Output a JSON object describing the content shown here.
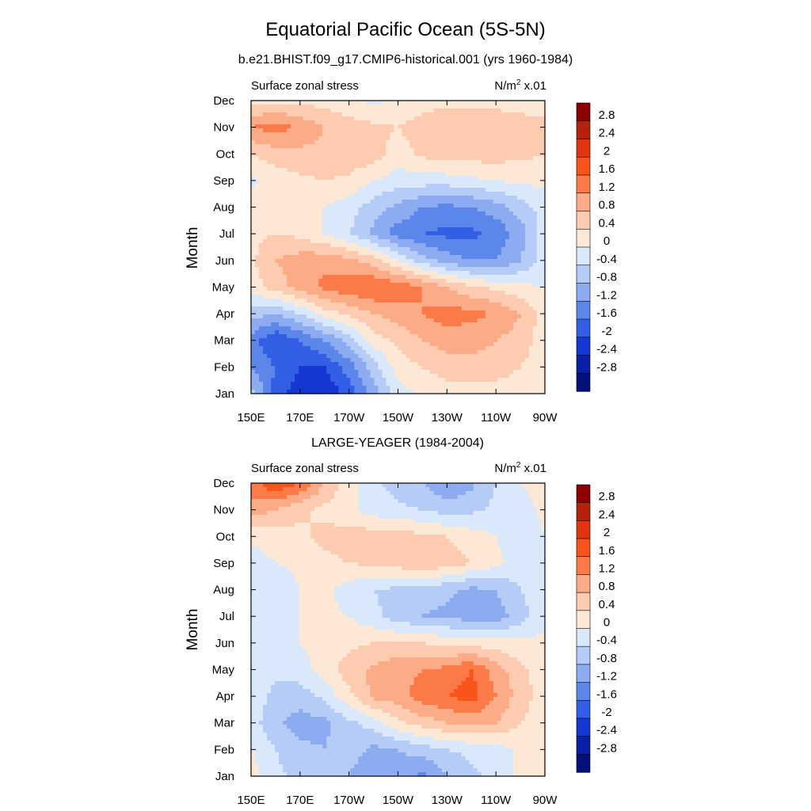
{
  "figure": {
    "title": "Equatorial Pacific Ocean (5S-5N)"
  },
  "colorbar": {
    "labels": [
      "2.8",
      "2.4",
      "2",
      "1.6",
      "1.2",
      "0.8",
      "0.4",
      "0",
      "-0.4",
      "-0.8",
      "-1.2",
      "-1.6",
      "-2",
      "-2.4",
      "-2.8"
    ],
    "colors": [
      "#8b0000",
      "#b3220a",
      "#e0360f",
      "#f9541c",
      "#fc7a48",
      "#fcab87",
      "#fdccb0",
      "#fde8d6",
      "#d9e9fb",
      "#b5ccf6",
      "#8cabf0",
      "#5d86ea",
      "#325fe6",
      "#1637d1",
      "#0a1fa8",
      "#04107a"
    ]
  },
  "chart_data": [
    {
      "type": "heatmap",
      "subtitle": "b.e21.BHIST.f09_g17.CMIP6-historical.001 (yrs 1960-1984)",
      "left_label": "Surface zonal stress",
      "units_base": "N/m",
      "units_sup": "2",
      "units_scale": " x.01",
      "ylabel": "Month",
      "xticks": [
        "150E",
        "170E",
        "170W",
        "150W",
        "130W",
        "110W",
        "90W"
      ],
      "yticks": [
        "Jan",
        "Feb",
        "Mar",
        "Apr",
        "May",
        "Jun",
        "Jul",
        "Aug",
        "Sep",
        "Oct",
        "Nov",
        "Dec"
      ],
      "x_range": [
        "150E",
        "90W"
      ],
      "y_range": [
        "Jan",
        "Dec"
      ],
      "grid": [
        [
          -0.6,
          -1.8,
          -2.2,
          -2.4,
          -1.8,
          -1.0,
          -0.2,
          0.1,
          0.2,
          0.2,
          0.2,
          0.2,
          0.1
        ],
        [
          -1.2,
          -1.6,
          -2.0,
          -2.0,
          -1.4,
          -0.6,
          0.2,
          0.4,
          0.6,
          0.6,
          0.6,
          0.4,
          0.2
        ],
        [
          -1.4,
          -2.0,
          -1.6,
          -1.2,
          -0.6,
          0.2,
          0.5,
          0.8,
          1.0,
          1.0,
          0.8,
          0.6,
          0.2
        ],
        [
          -0.6,
          -0.8,
          -0.4,
          0.2,
          0.5,
          0.8,
          1.0,
          1.2,
          1.4,
          1.3,
          1.2,
          0.8,
          0.2
        ],
        [
          0.2,
          0.6,
          1.0,
          1.3,
          1.5,
          1.6,
          1.5,
          1.2,
          0.8,
          0.5,
          0.3,
          0.1,
          0.0
        ],
        [
          0.3,
          0.8,
          1.0,
          1.1,
          0.9,
          0.6,
          0.0,
          -0.6,
          -1.0,
          -1.2,
          -1.2,
          -0.8,
          -0.2
        ],
        [
          0.3,
          0.4,
          0.3,
          0.0,
          -0.4,
          -0.9,
          -1.4,
          -1.6,
          -1.7,
          -1.7,
          -1.5,
          -1.0,
          -0.2
        ],
        [
          0.2,
          0.3,
          0.2,
          0.0,
          -0.2,
          -0.6,
          -0.9,
          -1.2,
          -1.3,
          -1.2,
          -1.0,
          -0.6,
          -0.2
        ],
        [
          -0.1,
          0.2,
          0.3,
          0.4,
          0.3,
          0.0,
          -0.2,
          -0.2,
          -0.2,
          -0.1,
          0.0,
          0.1,
          0.1
        ],
        [
          0.4,
          0.6,
          0.7,
          0.7,
          0.7,
          0.6,
          0.2,
          0.5,
          0.6,
          0.6,
          0.6,
          0.5,
          0.4
        ],
        [
          1.2,
          1.4,
          1.1,
          0.8,
          0.6,
          0.5,
          0.4,
          0.6,
          0.7,
          0.7,
          0.6,
          0.6,
          0.5
        ],
        [
          0.2,
          0.3,
          0.3,
          0.2,
          0.1,
          -0.1,
          0.1,
          0.2,
          0.3,
          0.3,
          0.3,
          0.2,
          0.2
        ]
      ]
    },
    {
      "type": "heatmap",
      "subtitle": "LARGE-YEAGER (1984-2004)",
      "left_label": "Surface zonal stress",
      "units_base": "N/m",
      "units_sup": "2",
      "units_scale": " x.01",
      "ylabel": "Month",
      "xticks": [
        "150E",
        "170E",
        "170W",
        "150W",
        "130W",
        "110W",
        "90W"
      ],
      "yticks": [
        "Jan",
        "Feb",
        "Mar",
        "Apr",
        "May",
        "Jun",
        "Jul",
        "Aug",
        "Sep",
        "Oct",
        "Nov",
        "Dec"
      ],
      "x_range": [
        "150E",
        "90W"
      ],
      "y_range": [
        "Jan",
        "Dec"
      ],
      "grid": [
        [
          0.2,
          -0.3,
          -0.5,
          -0.6,
          -0.8,
          -1.2,
          -1.0,
          -1.3,
          -0.8,
          -0.5,
          -0.3,
          0.1,
          0.2
        ],
        [
          0.0,
          -0.4,
          -0.7,
          -0.8,
          -0.6,
          -0.9,
          -0.8,
          -0.6,
          -0.4,
          -0.3,
          -0.2,
          0.1,
          0.2
        ],
        [
          -0.2,
          -0.7,
          -1.0,
          -0.9,
          -0.5,
          -0.2,
          0.3,
          0.6,
          0.8,
          0.9,
          0.8,
          0.4,
          0.2
        ],
        [
          -0.2,
          -0.5,
          -0.6,
          -0.3,
          0.3,
          0.9,
          1.0,
          1.4,
          1.6,
          1.8,
          1.2,
          0.6,
          0.2
        ],
        [
          -0.1,
          -0.3,
          -0.2,
          0.2,
          0.6,
          0.9,
          1.1,
          1.2,
          1.3,
          1.6,
          1.0,
          0.5,
          0.2
        ],
        [
          -0.1,
          -0.1,
          0.0,
          0.2,
          0.3,
          0.4,
          0.4,
          0.4,
          0.3,
          0.2,
          0.2,
          0.1,
          0.1
        ],
        [
          -0.2,
          -0.1,
          0.0,
          0.1,
          0.0,
          -0.3,
          -0.6,
          -0.8,
          -0.9,
          -1.0,
          -1.0,
          -0.6,
          -0.1
        ],
        [
          -0.4,
          -0.3,
          0.0,
          0.1,
          -0.2,
          -0.4,
          -0.5,
          -0.6,
          -0.7,
          -0.9,
          -0.8,
          -0.4,
          -0.1
        ],
        [
          -0.2,
          0.0,
          0.1,
          0.3,
          0.4,
          0.5,
          0.6,
          0.8,
          0.6,
          0.4,
          0.1,
          -0.2,
          -0.1
        ],
        [
          0.1,
          0.2,
          0.3,
          0.5,
          0.6,
          0.6,
          0.6,
          0.5,
          0.4,
          0.2,
          0.0,
          -0.2,
          0.0
        ],
        [
          1.0,
          0.8,
          0.5,
          0.3,
          0.1,
          -0.2,
          -0.3,
          -0.4,
          -0.6,
          -0.5,
          -0.3,
          -0.2,
          0.1
        ],
        [
          1.4,
          2.0,
          1.6,
          0.8,
          0.2,
          -0.3,
          -0.6,
          -0.8,
          -1.2,
          -0.9,
          -0.4,
          0.0,
          0.2
        ]
      ]
    }
  ]
}
